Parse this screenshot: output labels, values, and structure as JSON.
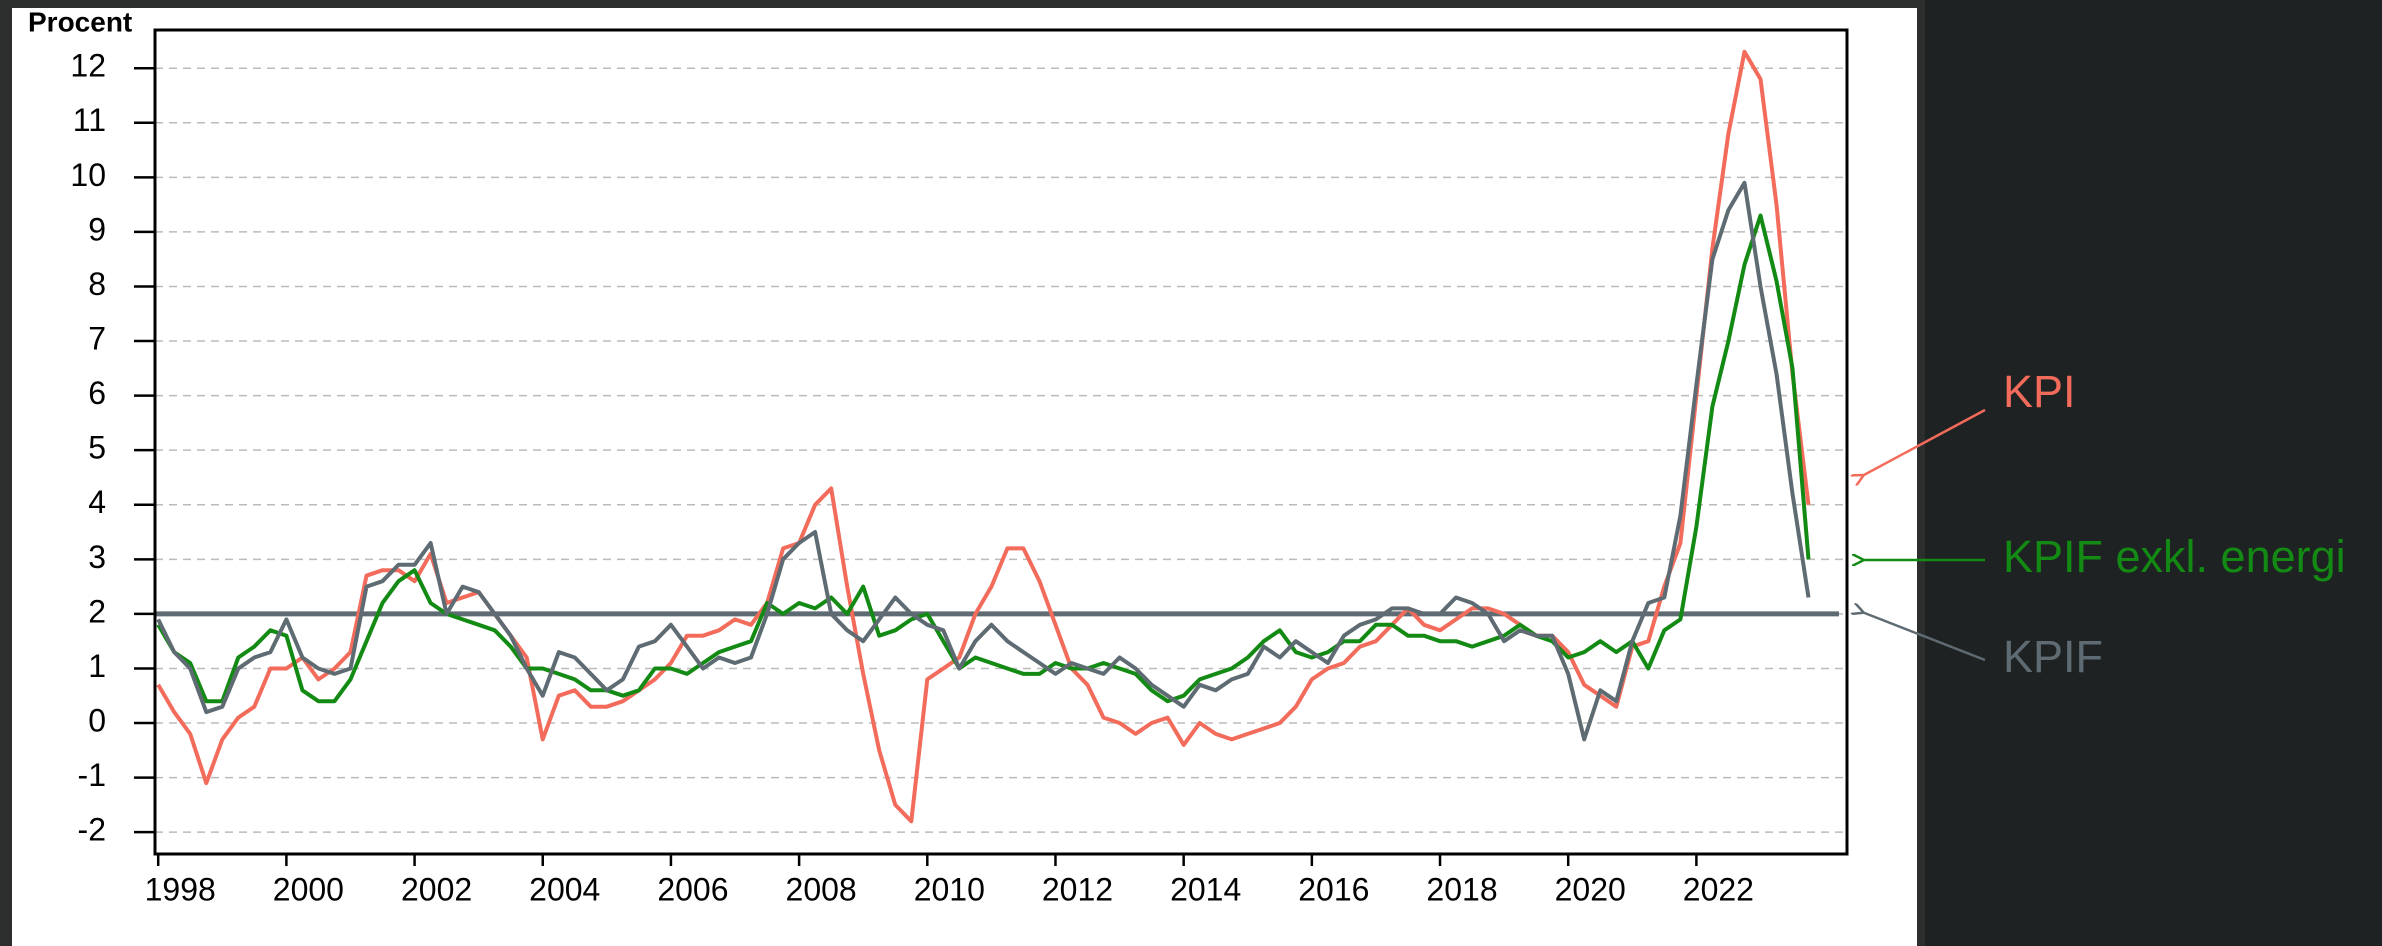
{
  "chart_data": {
    "type": "line",
    "y_axis_label": "Procent",
    "x": [
      1998,
      1998.25,
      1998.5,
      1998.75,
      1999,
      1999.25,
      1999.5,
      1999.75,
      2000,
      2000.25,
      2000.5,
      2000.75,
      2001,
      2001.25,
      2001.5,
      2001.75,
      2002,
      2002.25,
      2002.5,
      2002.75,
      2003,
      2003.25,
      2003.5,
      2003.75,
      2004,
      2004.25,
      2004.5,
      2004.75,
      2005,
      2005.25,
      2005.5,
      2005.75,
      2006,
      2006.25,
      2006.5,
      2006.75,
      2007,
      2007.25,
      2007.5,
      2007.75,
      2008,
      2008.25,
      2008.5,
      2008.75,
      2009,
      2009.25,
      2009.5,
      2009.75,
      2010,
      2010.25,
      2010.5,
      2010.75,
      2011,
      2011.25,
      2011.5,
      2011.75,
      2012,
      2012.25,
      2012.5,
      2012.75,
      2013,
      2013.25,
      2013.5,
      2013.75,
      2014,
      2014.25,
      2014.5,
      2014.75,
      2015,
      2015.25,
      2015.5,
      2015.75,
      2016,
      2016.25,
      2016.5,
      2016.75,
      2017,
      2017.25,
      2017.5,
      2017.75,
      2018,
      2018.25,
      2018.5,
      2018.75,
      2019,
      2019.25,
      2019.5,
      2019.75,
      2020,
      2020.25,
      2020.5,
      2020.75,
      2021,
      2021.25,
      2021.5,
      2021.75,
      2022,
      2022.25,
      2022.5,
      2022.75,
      2023,
      2023.25,
      2023.5,
      2023.75
    ],
    "series": [
      {
        "name": "KPI",
        "color": "#f26b5b",
        "values": [
          0.7,
          0.2,
          -0.2,
          -1.1,
          -0.3,
          0.1,
          0.3,
          1.0,
          1.0,
          1.2,
          0.8,
          1.0,
          1.3,
          2.7,
          2.8,
          2.8,
          2.6,
          3.1,
          2.2,
          2.3,
          2.4,
          2.0,
          1.6,
          1.2,
          -0.3,
          0.5,
          0.6,
          0.3,
          0.3,
          0.4,
          0.6,
          0.8,
          1.1,
          1.6,
          1.6,
          1.7,
          1.9,
          1.8,
          2.2,
          3.2,
          3.3,
          4.0,
          4.3,
          2.5,
          0.9,
          -0.5,
          -1.5,
          -1.8,
          0.8,
          1.0,
          1.2,
          2.0,
          2.5,
          3.2,
          3.2,
          2.6,
          1.8,
          1.0,
          0.7,
          0.1,
          0.0,
          -0.2,
          0.0,
          0.1,
          -0.4,
          0.0,
          -0.2,
          -0.3,
          -0.2,
          -0.1,
          0.0,
          0.3,
          0.8,
          1.0,
          1.1,
          1.4,
          1.5,
          1.8,
          2.1,
          1.8,
          1.7,
          1.9,
          2.1,
          2.1,
          2.0,
          1.8,
          1.6,
          1.6,
          1.3,
          0.7,
          0.5,
          0.3,
          1.4,
          1.5,
          2.5,
          3.3,
          6.0,
          8.7,
          10.8,
          12.3,
          11.8,
          9.5,
          6.4,
          4.0
        ]
      },
      {
        "name": "KPIF exkl. energi",
        "color": "#138a13",
        "values": [
          1.8,
          1.3,
          1.1,
          0.4,
          0.4,
          1.2,
          1.4,
          1.7,
          1.6,
          0.6,
          0.4,
          0.4,
          0.8,
          1.5,
          2.2,
          2.6,
          2.8,
          2.2,
          2.0,
          1.9,
          1.8,
          1.7,
          1.4,
          1.0,
          1.0,
          0.9,
          0.8,
          0.6,
          0.6,
          0.5,
          0.6,
          1.0,
          1.0,
          0.9,
          1.1,
          1.3,
          1.4,
          1.5,
          2.2,
          2.0,
          2.2,
          2.1,
          2.3,
          2.0,
          2.5,
          1.6,
          1.7,
          1.9,
          2.0,
          1.5,
          1.0,
          1.2,
          1.1,
          1.0,
          0.9,
          0.9,
          1.1,
          1.0,
          1.0,
          1.1,
          1.0,
          0.9,
          0.6,
          0.4,
          0.5,
          0.8,
          0.9,
          1.0,
          1.2,
          1.5,
          1.7,
          1.3,
          1.2,
          1.3,
          1.5,
          1.5,
          1.8,
          1.8,
          1.6,
          1.6,
          1.5,
          1.5,
          1.4,
          1.5,
          1.6,
          1.8,
          1.6,
          1.5,
          1.2,
          1.3,
          1.5,
          1.3,
          1.5,
          1.0,
          1.7,
          1.9,
          3.6,
          5.8,
          7.0,
          8.4,
          9.3,
          8.1,
          6.5,
          3.0
        ]
      },
      {
        "name": "KPIF",
        "color": "#5f6b73",
        "values": [
          1.9,
          1.3,
          1.0,
          0.2,
          0.3,
          1.0,
          1.2,
          1.3,
          1.9,
          1.2,
          1.0,
          0.9,
          1.0,
          2.5,
          2.6,
          2.9,
          2.9,
          3.3,
          2.0,
          2.5,
          2.4,
          2.0,
          1.6,
          1.0,
          0.5,
          1.3,
          1.2,
          0.9,
          0.6,
          0.8,
          1.4,
          1.5,
          1.8,
          1.4,
          1.0,
          1.2,
          1.1,
          1.2,
          2.0,
          3.0,
          3.3,
          3.5,
          2.0,
          1.7,
          1.5,
          1.9,
          2.3,
          2.0,
          1.8,
          1.7,
          1.0,
          1.5,
          1.8,
          1.5,
          1.3,
          1.1,
          0.9,
          1.1,
          1.0,
          0.9,
          1.2,
          1.0,
          0.7,
          0.5,
          0.3,
          0.7,
          0.6,
          0.8,
          0.9,
          1.4,
          1.2,
          1.5,
          1.3,
          1.1,
          1.6,
          1.8,
          1.9,
          2.1,
          2.1,
          2.0,
          2.0,
          2.3,
          2.2,
          2.0,
          1.5,
          1.7,
          1.6,
          1.6,
          0.9,
          -0.3,
          0.6,
          0.4,
          1.5,
          2.2,
          2.3,
          3.8,
          6.2,
          8.5,
          9.4,
          9.9,
          8.0,
          6.4,
          4.2,
          2.3
        ]
      }
    ],
    "target_line": 2,
    "xlim": [
      1997.95,
      2024.35
    ],
    "xticks": [
      1998,
      2000,
      2002,
      2004,
      2006,
      2008,
      2010,
      2012,
      2014,
      2016,
      2018,
      2020,
      2022
    ],
    "ylim": [
      -2.4,
      12.7
    ],
    "yticks": [
      -2,
      -1,
      0,
      1,
      2,
      3,
      4,
      5,
      6,
      7,
      8,
      9,
      10,
      11,
      12
    ],
    "grid": true
  }
}
